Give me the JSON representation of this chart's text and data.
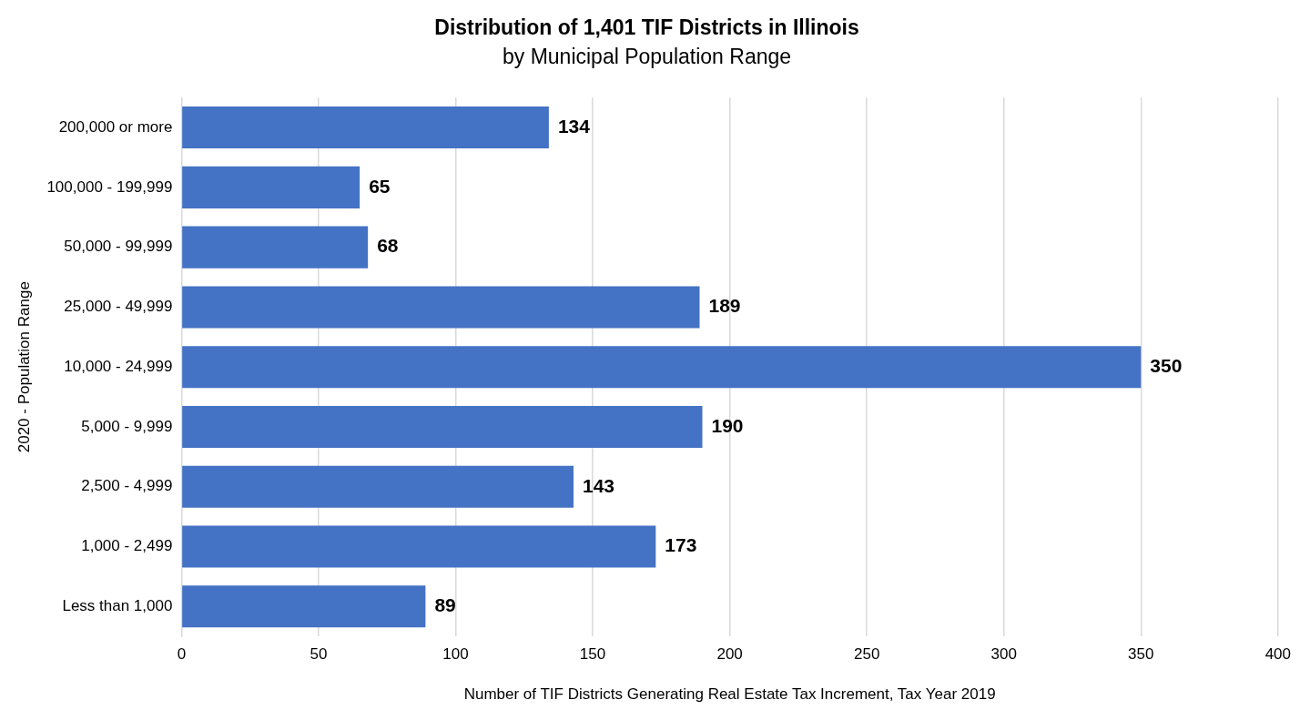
{
  "chart_data": {
    "type": "bar",
    "orientation": "horizontal",
    "title": "Distribution of 1,401 TIF Districts in Illinois",
    "subtitle": "by Municipal Population Range",
    "xlabel": "Number of TIF Districts Generating Real Estate Tax Increment, Tax Year 2019",
    "ylabel": "2020 - Population Range",
    "categories": [
      "200,000 or more",
      "100,000 - 199,999",
      "50,000 - 99,999",
      "25,000 - 49,999",
      "10,000 - 24,999",
      "5,000 - 9,999",
      "2,500 - 4,999",
      "1,000 - 2,499",
      "Less than 1,000"
    ],
    "values": [
      134,
      65,
      68,
      189,
      350,
      190,
      143,
      173,
      89
    ],
    "color": "#4472c4",
    "xlim": [
      0,
      400
    ],
    "xticks": [
      0,
      50,
      100,
      150,
      200,
      250,
      300,
      350,
      400
    ],
    "grid": "x",
    "data_labels": true,
    "legend": false
  }
}
